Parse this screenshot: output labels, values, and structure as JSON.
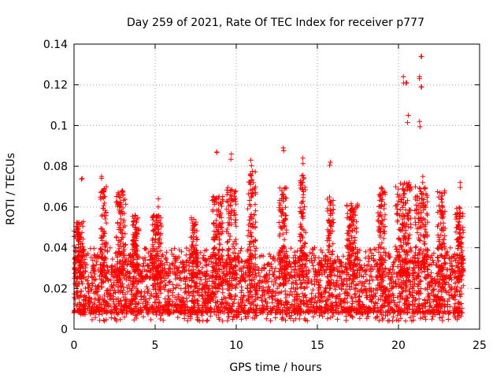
{
  "chart_data": {
    "type": "scatter",
    "title": "Day 259 of 2021, Rate Of TEC Index for receiver p777",
    "xlabel": "GPS time / hours",
    "ylabel": "ROTI / TECUs",
    "xlim": [
      0,
      25
    ],
    "ylim": [
      0,
      0.14
    ],
    "xticks": [
      "0",
      "5",
      "10",
      "15",
      "20",
      "25"
    ],
    "yticks": [
      "0",
      "0.02",
      "0.04",
      "0.06",
      "0.08",
      "0.1",
      "0.12",
      "0.14"
    ],
    "grid": true,
    "marker": "plus",
    "color": "#ff0000",
    "x_extent": [
      0,
      24
    ],
    "baseline_typical": [
      0.008,
      0.03
    ],
    "notable_points": [
      {
        "x": 0.5,
        "y": 0.074
      },
      {
        "x": 1.7,
        "y": 0.075
      },
      {
        "x": 5.2,
        "y": 0.064
      },
      {
        "x": 8.8,
        "y": 0.087
      },
      {
        "x": 9.7,
        "y": 0.086
      },
      {
        "x": 10.9,
        "y": 0.083
      },
      {
        "x": 12.9,
        "y": 0.089
      },
      {
        "x": 14.1,
        "y": 0.084
      },
      {
        "x": 15.8,
        "y": 0.082
      },
      {
        "x": 20.3,
        "y": 0.124
      },
      {
        "x": 20.5,
        "y": 0.121
      },
      {
        "x": 20.6,
        "y": 0.105
      },
      {
        "x": 21.4,
        "y": 0.134
      },
      {
        "x": 21.3,
        "y": 0.124
      },
      {
        "x": 21.4,
        "y": 0.119
      },
      {
        "x": 21.3,
        "y": 0.102
      },
      {
        "x": 21.5,
        "y": 0.075
      },
      {
        "x": 23.8,
        "y": 0.072
      }
    ],
    "burst_regions": [
      {
        "x0": 0.0,
        "x1": 0.6,
        "ymax": 0.053
      },
      {
        "x0": 1.6,
        "x1": 2.0,
        "ymax": 0.07
      },
      {
        "x0": 2.6,
        "x1": 3.2,
        "ymax": 0.068
      },
      {
        "x0": 3.6,
        "x1": 4.0,
        "ymax": 0.056
      },
      {
        "x0": 4.8,
        "x1": 5.4,
        "ymax": 0.056
      },
      {
        "x0": 7.2,
        "x1": 7.6,
        "ymax": 0.055
      },
      {
        "x0": 8.5,
        "x1": 9.2,
        "ymax": 0.066
      },
      {
        "x0": 9.4,
        "x1": 10.0,
        "ymax": 0.07
      },
      {
        "x0": 10.7,
        "x1": 11.2,
        "ymax": 0.078
      },
      {
        "x0": 12.6,
        "x1": 13.1,
        "ymax": 0.07
      },
      {
        "x0": 13.9,
        "x1": 14.3,
        "ymax": 0.077
      },
      {
        "x0": 15.6,
        "x1": 16.0,
        "ymax": 0.065
      },
      {
        "x0": 16.8,
        "x1": 17.5,
        "ymax": 0.062
      },
      {
        "x0": 18.7,
        "x1": 19.2,
        "ymax": 0.07
      },
      {
        "x0": 19.8,
        "x1": 20.8,
        "ymax": 0.072
      },
      {
        "x0": 21.0,
        "x1": 21.8,
        "ymax": 0.07
      },
      {
        "x0": 22.4,
        "x1": 22.9,
        "ymax": 0.068
      },
      {
        "x0": 23.5,
        "x1": 24.0,
        "ymax": 0.06
      }
    ],
    "dense_samples_per_hour": 140
  }
}
